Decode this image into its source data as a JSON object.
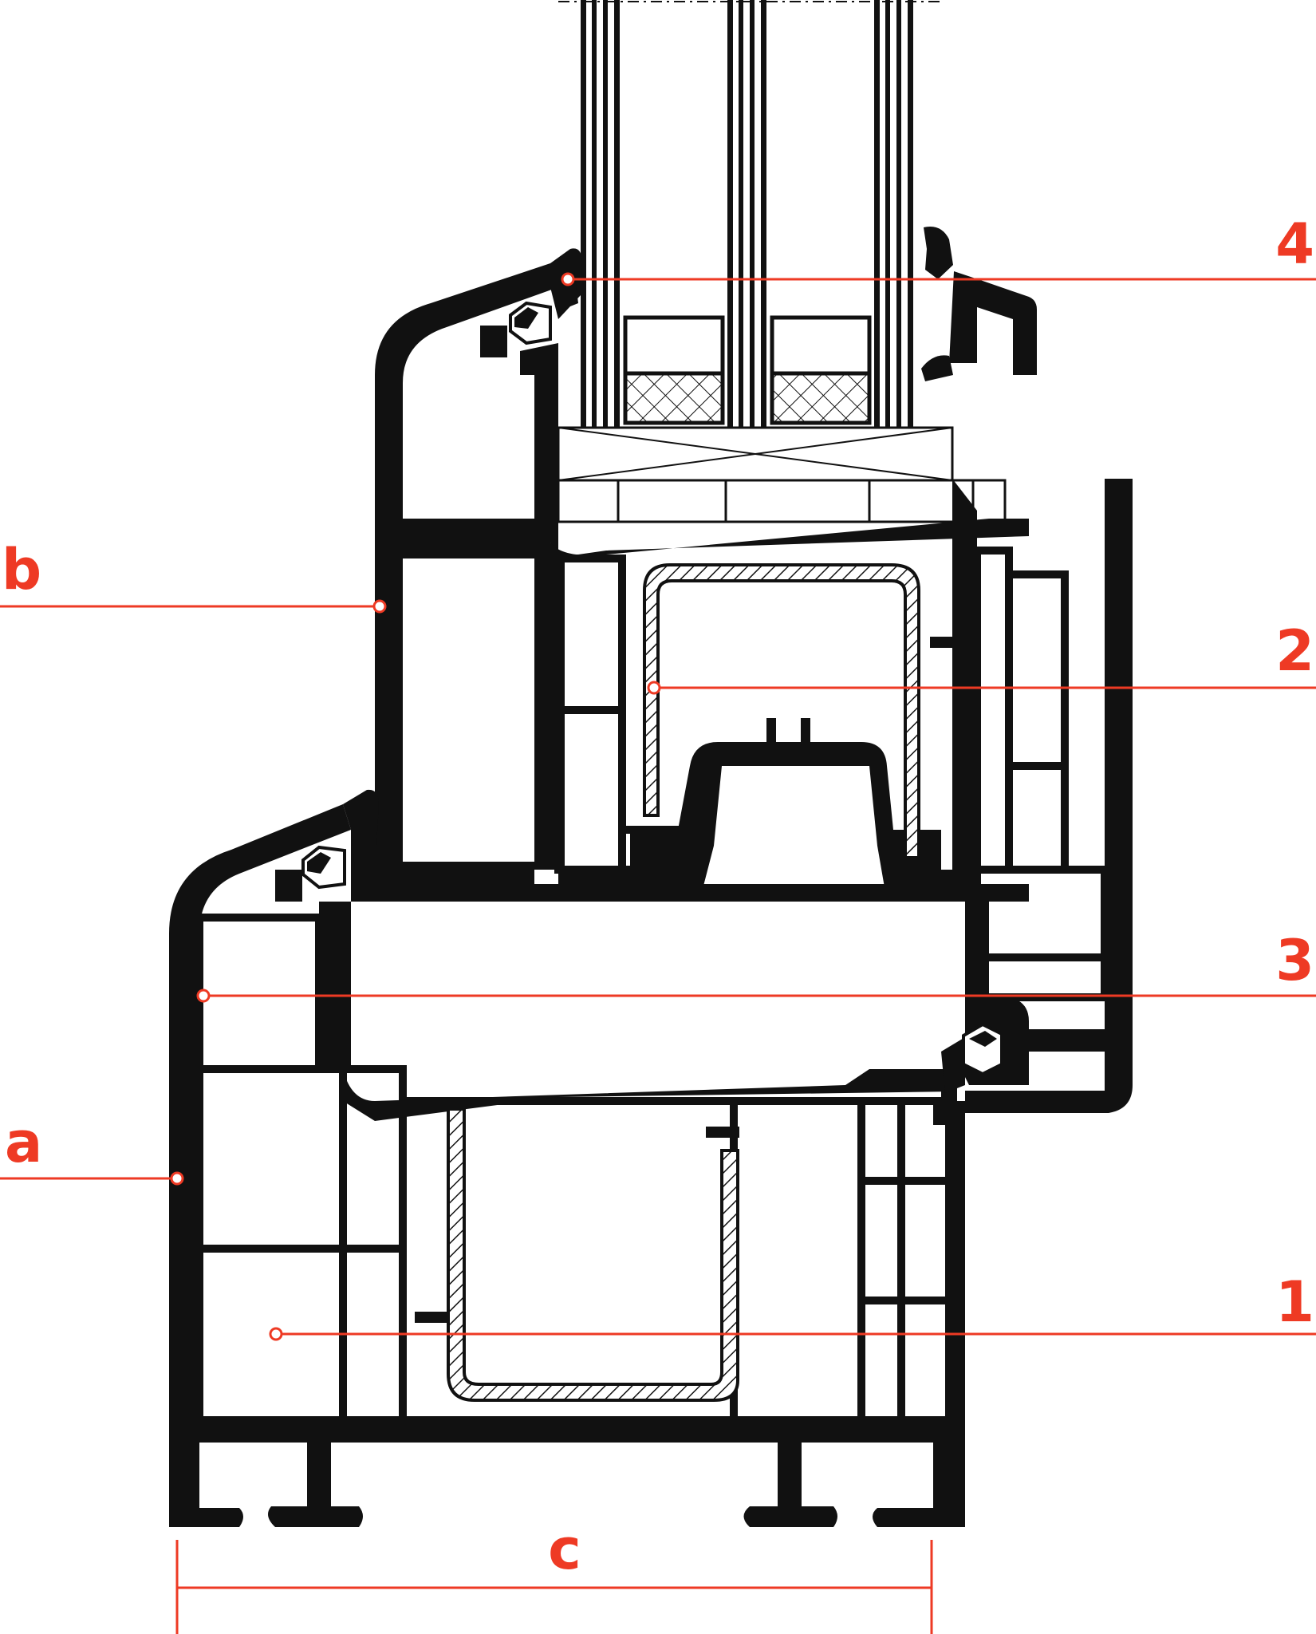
{
  "colors": {
    "accent": "#ee3a24",
    "profile": "#111111",
    "background": "#ffffff"
  },
  "callouts": {
    "label_4": "4",
    "label_2": "2",
    "label_3": "3",
    "label_1": "1",
    "label_b": "b",
    "label_a": "a",
    "label_c": "c"
  }
}
